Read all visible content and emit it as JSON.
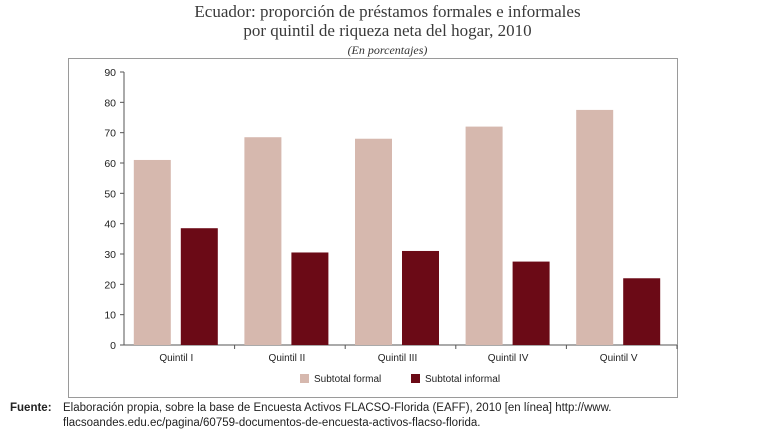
{
  "chart_data": {
    "type": "bar",
    "title_lines": [
      "Ecuador: proporción de préstamos formales e informales",
      "por quintil de riqueza neta del hogar, 2010"
    ],
    "subtitle": "(En porcentajes)",
    "categories": [
      "Quintil I",
      "Quintil II",
      "Quintil III",
      "Quintil IV",
      "Quintil V"
    ],
    "series": [
      {
        "name": "Subtotal formal",
        "values": [
          61,
          68.5,
          68,
          72,
          77.5
        ],
        "color": "#d6b8ae"
      },
      {
        "name": "Subtotal informal",
        "values": [
          38.5,
          30.5,
          31,
          27.5,
          22
        ],
        "color": "#6b0a16"
      }
    ],
    "ylim": [
      0,
      90
    ],
    "yticks": [
      0,
      10,
      20,
      30,
      40,
      50,
      60,
      70,
      80,
      90
    ],
    "legend_position": "bottom",
    "grid": false
  },
  "source": {
    "label": "Fuente:",
    "text_line1": "Elaboración propia, sobre la base de Encuesta Activos FLACSO-Florida (EAFF), 2010 [en línea] http://www.",
    "text_line2": "flacsoandes.edu.ec/pagina/60759-documentos-de-encuesta-activos-flacso-florida."
  }
}
